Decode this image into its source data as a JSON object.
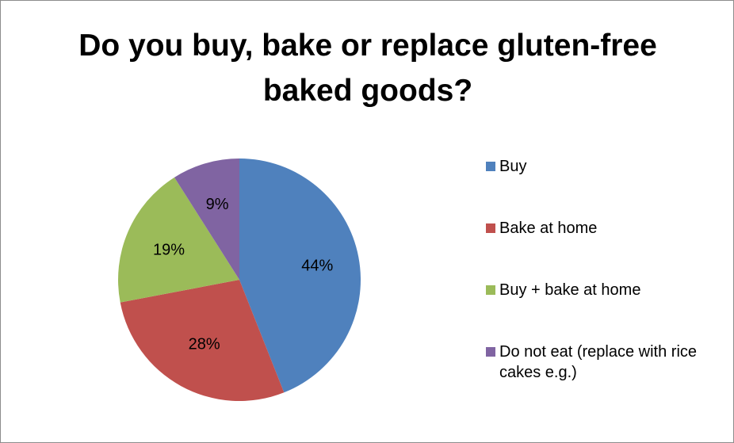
{
  "chart_data": {
    "type": "pie",
    "title": "Do you buy, bake or replace gluten-free baked goods?",
    "categories": [
      "Buy",
      "Bake at home",
      "Buy + bake at home",
      "Do not eat (replace with rice cakes e.g.)"
    ],
    "values": [
      44,
      28,
      19,
      9
    ],
    "labels": [
      "44%",
      "28%",
      "19%",
      "9%"
    ],
    "colors": [
      "#4f81bd",
      "#c0504d",
      "#9bbb59",
      "#8064a2"
    ],
    "legend_position": "right"
  }
}
